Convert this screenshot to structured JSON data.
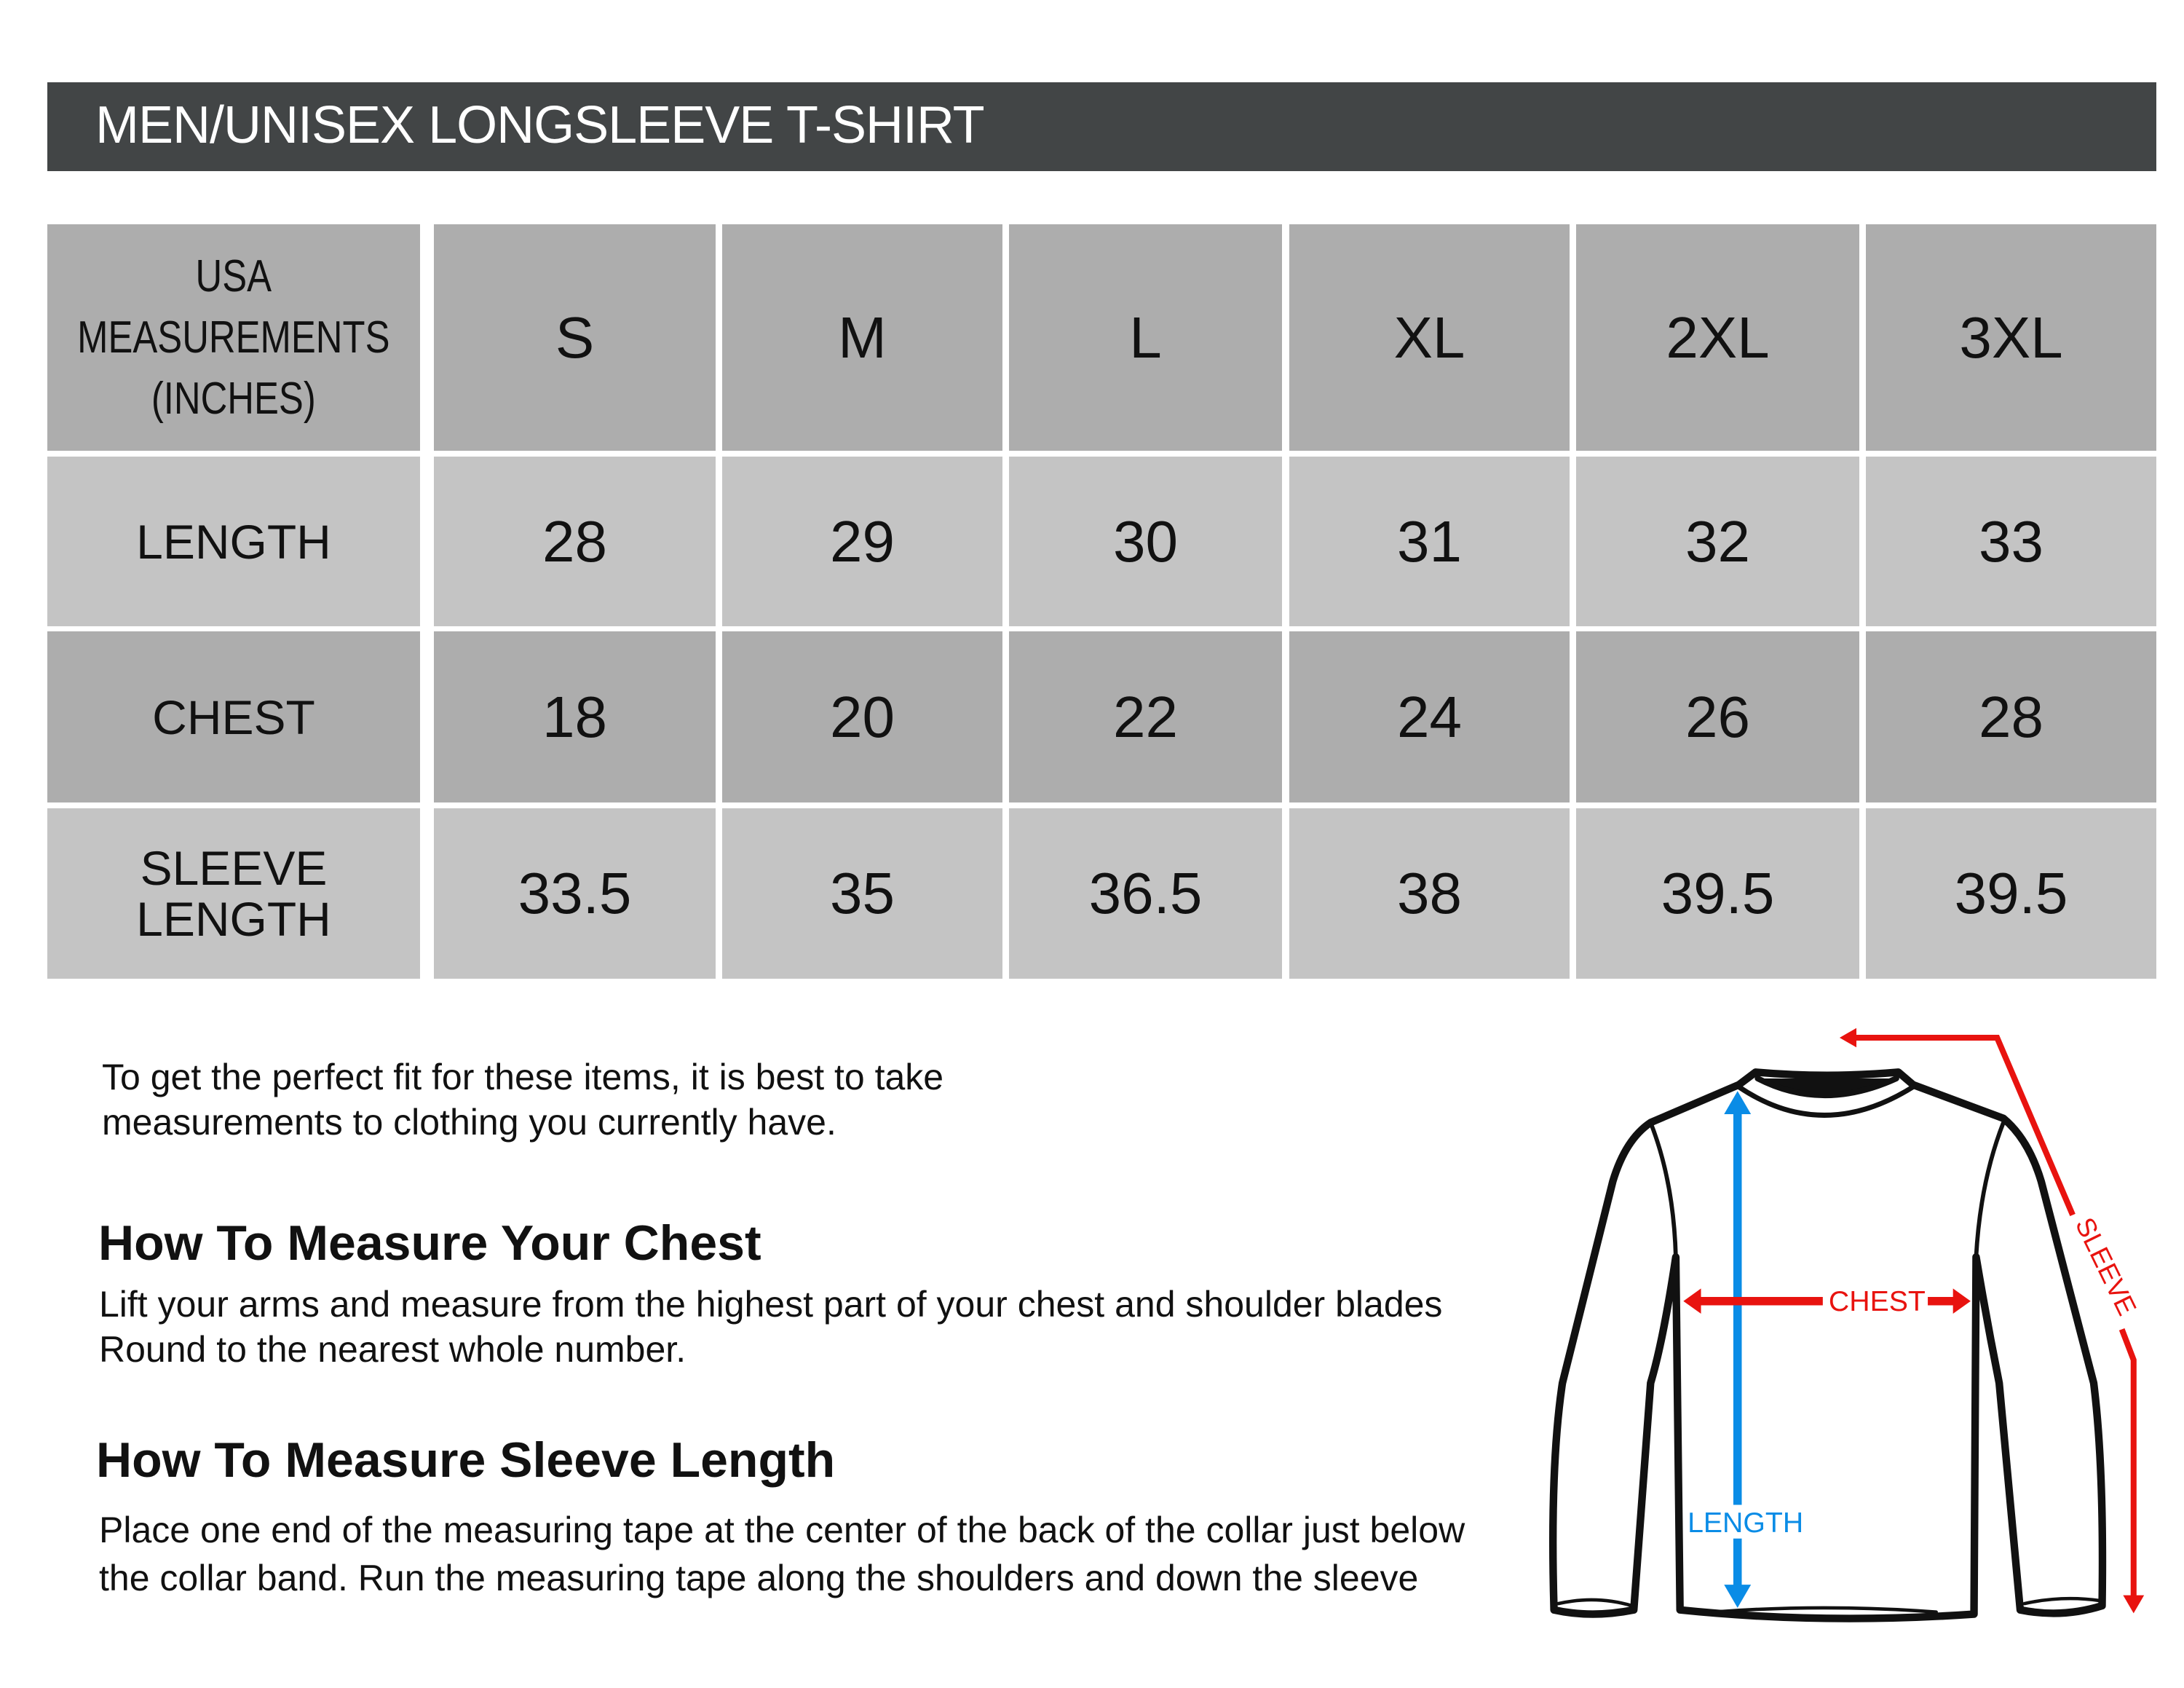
{
  "title": "MEN/UNISEX LONGSLEEVE T-SHIRT",
  "table": {
    "corner": [
      "USA",
      "MEASUREMENTS",
      "(INCHES)"
    ],
    "sizes": [
      "S",
      "M",
      "L",
      "XL",
      "2XL",
      "3XL"
    ],
    "rows": [
      {
        "label": "LENGTH",
        "values": [
          "28",
          "29",
          "30",
          "31",
          "32",
          "33"
        ]
      },
      {
        "label": "CHEST",
        "values": [
          "18",
          "20",
          "22",
          "24",
          "26",
          "28"
        ]
      },
      {
        "label_lines": [
          "SLEEVE",
          "LENGTH"
        ],
        "values": [
          "33.5",
          "35",
          "36.5",
          "38",
          "39.5",
          "39.5"
        ]
      }
    ]
  },
  "intro": [
    "To get the perfect fit for these items, it is best to take",
    "measurements to clothing you currently have."
  ],
  "chest_section": {
    "heading": "How To Measure Your Chest",
    "lines": [
      "Lift your arms and measure from the highest part of your chest and shoulder blades",
      "Round to the nearest whole number."
    ]
  },
  "sleeve_section": {
    "heading": "How To Measure Sleeve Length",
    "lines": [
      "Place one end of the measuring tape at the center of the back of the collar just below",
      "the collar band. Run the measuring tape along the shoulders and down the sleeve"
    ]
  },
  "diagram": {
    "length_label": "LENGTH",
    "chest_label": "CHEST",
    "sleeve_label": "SLEEVE",
    "colors": {
      "length": "#0a8ce6",
      "chest": "#e8130f",
      "sleeve": "#e8130f",
      "outline": "#111111"
    }
  },
  "colors": {
    "title_bar": "#424546",
    "header_cells": "#adadad",
    "light_cells": "#c4c4c4"
  }
}
